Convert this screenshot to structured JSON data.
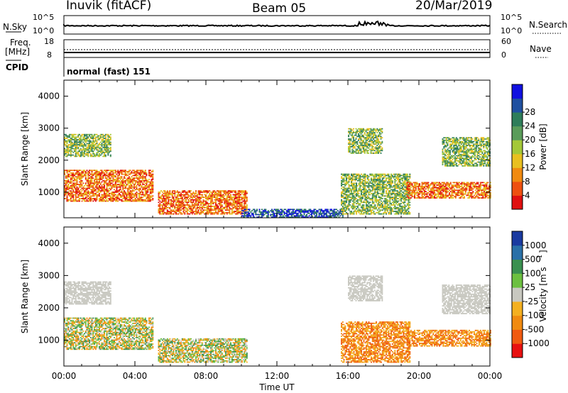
{
  "header": {
    "title": "Inuvik (fitACF)",
    "beam": "Beam 05",
    "date": "20/Mar/2019"
  },
  "top_panels": {
    "nsky_label": "N.Sky",
    "nsearch_label": "N.Search",
    "nsky_ticks": [
      "10^5",
      "10^0"
    ],
    "nsearch_ticks": [
      "10^5",
      "10^0"
    ],
    "freq_label": "Freq.",
    "freq_unit": "[MHz]",
    "freq_ticks": [
      "18",
      "8"
    ],
    "nave_label": "Nave",
    "nave_ticks": [
      "60",
      "0"
    ],
    "cpid_label": "CPID",
    "cpid_value": "normal (fast) 151"
  },
  "chart_data": [
    {
      "type": "heatmap",
      "quantity": "power",
      "ylabel": "Slant Range [km]",
      "yticks": [
        "1000",
        "2000",
        "3000",
        "4000"
      ],
      "ylim": [
        200,
        4500
      ],
      "colorbar_label": "Power [dB]",
      "colorbar_ticks": [
        "4",
        "8",
        "12",
        "16",
        "20",
        "24",
        "28"
      ],
      "colorbar_colors": [
        "#1010e0",
        "#2050a0",
        "#2e7d5a",
        "#5a9c5a",
        "#a4c838",
        "#e8c020",
        "#f08a10",
        "#ee5010",
        "#e01010"
      ],
      "regions": [
        {
          "t0": 0.0,
          "t1": 5.0,
          "r0": 700,
          "r1": 1700,
          "level": "high"
        },
        {
          "t0": 0.0,
          "t1": 2.6,
          "r0": 2100,
          "r1": 2800,
          "level": "mid"
        },
        {
          "t0": 5.3,
          "t1": 10.3,
          "r0": 300,
          "r1": 1050,
          "level": "high"
        },
        {
          "t0": 10.0,
          "t1": 15.7,
          "r0": 200,
          "r1": 450,
          "level": "low"
        },
        {
          "t0": 15.6,
          "t1": 19.5,
          "r0": 300,
          "r1": 1550,
          "level": "mid"
        },
        {
          "t0": 16.0,
          "t1": 17.9,
          "r0": 2200,
          "r1": 3000,
          "level": "mid"
        },
        {
          "t0": 19.3,
          "t1": 24.0,
          "r0": 800,
          "r1": 1300,
          "level": "high"
        },
        {
          "t0": 21.3,
          "t1": 24.0,
          "r0": 1800,
          "r1": 2700,
          "level": "mid"
        }
      ]
    },
    {
      "type": "heatmap",
      "quantity": "velocity",
      "ylabel": "Slant Range [km]",
      "yticks": [
        "1000",
        "2000",
        "3000",
        "4000"
      ],
      "ylim": [
        200,
        4500
      ],
      "xlabel": "Time UT",
      "xticks": [
        "00:00",
        "04:00",
        "08:00",
        "12:00",
        "16:00",
        "20:00",
        "00:00"
      ],
      "xlim": [
        0,
        24
      ],
      "colorbar_label": "Velocity [m s",
      "colorbar_exp": "-1",
      "colorbar_ticks": [
        "1000",
        "500",
        "100",
        "25",
        "-25",
        "-100",
        "-500",
        "-1000"
      ],
      "colorbar_colors": [
        "#1a3aa0",
        "#2a70a8",
        "#3a9050",
        "#6cc040",
        "#c8c8c0",
        "#f4b020",
        "#f08a10",
        "#f05a10",
        "#e81010"
      ],
      "regions": [
        {
          "t0": 0.0,
          "t1": 5.0,
          "r0": 700,
          "r1": 1700,
          "level": "mixed"
        },
        {
          "t0": 0.0,
          "t1": 2.6,
          "r0": 2100,
          "r1": 2800,
          "level": "grey"
        },
        {
          "t0": 5.3,
          "t1": 10.3,
          "r0": 300,
          "r1": 1050,
          "level": "mixed"
        },
        {
          "t0": 15.6,
          "t1": 19.5,
          "r0": 300,
          "r1": 1550,
          "level": "orange"
        },
        {
          "t0": 16.0,
          "t1": 17.9,
          "r0": 2200,
          "r1": 3000,
          "level": "grey"
        },
        {
          "t0": 19.3,
          "t1": 24.0,
          "r0": 800,
          "r1": 1300,
          "level": "orange"
        },
        {
          "t0": 21.3,
          "t1": 24.0,
          "r0": 1800,
          "r1": 2700,
          "level": "grey"
        }
      ]
    }
  ]
}
